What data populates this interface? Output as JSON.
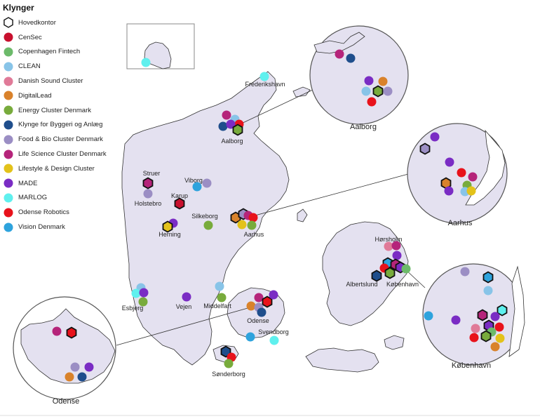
{
  "legend": {
    "title": "Klynger",
    "items": [
      {
        "key": "hovedkontor",
        "label": "Hovedkontor",
        "color": "#ffffff",
        "shape": "hexagon"
      },
      {
        "key": "censec",
        "label": "CenSec",
        "color": "#c8102e",
        "shape": "circle"
      },
      {
        "key": "cph_fintech",
        "label": "Copenhagen Fintech",
        "color": "#6cba6a",
        "shape": "circle"
      },
      {
        "key": "clean",
        "label": "CLEAN",
        "color": "#88c4e8",
        "shape": "circle"
      },
      {
        "key": "sound",
        "label": "Danish Sound Cluster",
        "color": "#e07a98",
        "shape": "circle"
      },
      {
        "key": "digitallead",
        "label": "DigitalLead",
        "color": "#d9822b",
        "shape": "circle"
      },
      {
        "key": "energy",
        "label": "Energy Cluster Denmark",
        "color": "#78ab3c",
        "shape": "circle"
      },
      {
        "key": "byggeri",
        "label": "Klynge for Byggeri og Anlæg",
        "color": "#1f4e8c",
        "shape": "circle"
      },
      {
        "key": "foodbio",
        "label": "Food & Bio Cluster Denmark",
        "color": "#9b8ec4",
        "shape": "circle"
      },
      {
        "key": "lifescience",
        "label": "Life Science Cluster Denmark",
        "color": "#b5247a",
        "shape": "circle"
      },
      {
        "key": "lifestyle",
        "label": "Lifestyle & Design Cluster",
        "color": "#e3c21a",
        "shape": "circle"
      },
      {
        "key": "made",
        "label": "MADE",
        "color": "#7a2cc4",
        "shape": "circle"
      },
      {
        "key": "marlog",
        "label": "MARLOG",
        "color": "#5ff0ee",
        "shape": "circle"
      },
      {
        "key": "robotics",
        "label": "Odense Robotics",
        "color": "#e8121b",
        "shape": "circle"
      },
      {
        "key": "vision",
        "label": "Vision Denmark",
        "color": "#2ea3dd",
        "shape": "circle"
      }
    ]
  },
  "map": {
    "land_color": "#e4e1f0",
    "outline_color": "#333333",
    "city_labels": [
      "Frederikshavn",
      "Aalborg",
      "Struer",
      "Viborg",
      "Holstebro",
      "Karup",
      "Silkeborg",
      "Herning",
      "Aarhus",
      "Hørsholm",
      "Albertslund",
      "København",
      "Esbjerg",
      "Vejen",
      "Middelfart",
      "Odense",
      "Svendborg",
      "Sønderborg"
    ],
    "callouts": [
      "Aalborg",
      "Aarhus",
      "København",
      "Odense"
    ]
  }
}
